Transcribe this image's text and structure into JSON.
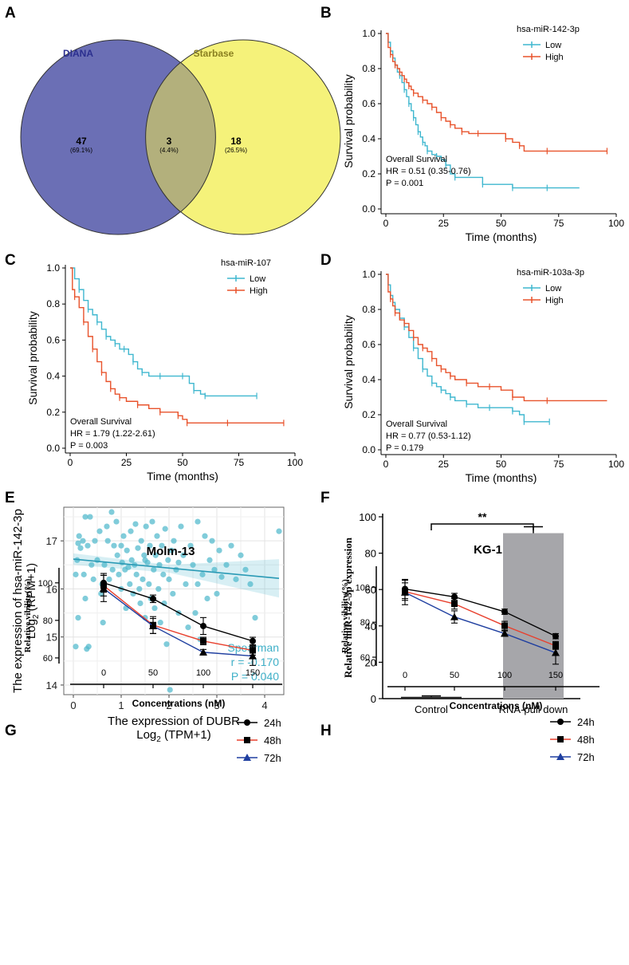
{
  "colors": {
    "diana": "#6b6fb5",
    "starbase": "#f5f27a",
    "overlap": "#b3b07c",
    "low": "#3fb7cf",
    "high": "#e8532c",
    "bar": "#a6a6aa",
    "scatter": "#4fb8cc",
    "line24": "#000000",
    "line48": "#e8402e",
    "line72": "#1f3fa0"
  },
  "panel_labels": {
    "a": "A",
    "b": "B",
    "c": "C",
    "d": "D",
    "e": "E",
    "f": "F",
    "g": "G",
    "h": "H"
  },
  "chart_data": [
    {
      "type": "venn",
      "sets": [
        {
          "name": "DIANA",
          "only": 47,
          "only_pct": "(69.1%)"
        },
        {
          "name": "Starbase",
          "only": 18,
          "only_pct": "(26.5%)"
        }
      ],
      "overlap": 3,
      "overlap_pct": "(4.4%)"
    },
    {
      "type": "line",
      "subtype": "kaplan-meier",
      "legend_title": "hsa-miR-142-3p",
      "xlabel": "Time (months)",
      "ylabel": "Survival probability",
      "xlim": [
        0,
        100
      ],
      "ylim": [
        0,
        1
      ],
      "xticks": [
        "0",
        "25",
        "50",
        "75",
        "100"
      ],
      "yticks": [
        "0.0",
        "0.2",
        "0.4",
        "0.6",
        "0.8",
        "1.0"
      ],
      "annotations": [
        "Overall Survival",
        "HR = 0.51 (0.35-0.76)",
        "P = 0.001"
      ],
      "series": [
        {
          "name": "Low",
          "color": "#3fb7cf",
          "x": [
            0,
            1,
            2,
            3,
            4,
            5,
            6,
            7,
            8,
            9,
            10,
            11,
            12,
            13,
            14,
            15,
            16,
            17,
            18,
            20,
            22,
            24,
            26,
            28,
            30,
            35,
            42,
            50,
            55,
            60,
            70,
            84
          ],
          "y": [
            1.0,
            0.95,
            0.9,
            0.86,
            0.82,
            0.78,
            0.76,
            0.72,
            0.68,
            0.64,
            0.6,
            0.56,
            0.52,
            0.48,
            0.44,
            0.41,
            0.38,
            0.36,
            0.33,
            0.31,
            0.3,
            0.28,
            0.25,
            0.2,
            0.18,
            0.18,
            0.14,
            0.14,
            0.12,
            0.12,
            0.12,
            0.12
          ]
        },
        {
          "name": "High",
          "color": "#e8532c",
          "x": [
            0,
            1,
            2,
            3,
            4,
            5,
            6,
            7,
            8,
            9,
            10,
            11,
            12,
            14,
            16,
            18,
            20,
            22,
            24,
            26,
            28,
            30,
            33,
            36,
            40,
            45,
            52,
            55,
            58,
            60,
            70,
            80,
            96
          ],
          "y": [
            1.0,
            0.92,
            0.88,
            0.84,
            0.82,
            0.8,
            0.78,
            0.76,
            0.74,
            0.72,
            0.7,
            0.68,
            0.66,
            0.64,
            0.62,
            0.6,
            0.58,
            0.55,
            0.52,
            0.5,
            0.48,
            0.46,
            0.44,
            0.43,
            0.43,
            0.43,
            0.4,
            0.38,
            0.36,
            0.33,
            0.33,
            0.33,
            0.33
          ]
        }
      ]
    },
    {
      "type": "line",
      "subtype": "kaplan-meier",
      "legend_title": "hsa-miR-107",
      "xlabel": "Time (months)",
      "ylabel": "Survival probability",
      "xlim": [
        0,
        100
      ],
      "ylim": [
        0,
        1
      ],
      "xticks": [
        "0",
        "25",
        "50",
        "75",
        "100"
      ],
      "yticks": [
        "0.0",
        "0.2",
        "0.4",
        "0.6",
        "0.8",
        "1.0"
      ],
      "annotations": [
        "Overall Survival",
        "HR = 1.79 (1.22-2.61)",
        "P = 0.003"
      ],
      "series": [
        {
          "name": "Low",
          "color": "#3fb7cf",
          "x": [
            0,
            2,
            4,
            6,
            8,
            10,
            12,
            14,
            16,
            18,
            20,
            22,
            24,
            26,
            28,
            30,
            32,
            35,
            40,
            45,
            50,
            53,
            55,
            58,
            60,
            70,
            83
          ],
          "y": [
            1.0,
            0.94,
            0.88,
            0.82,
            0.77,
            0.74,
            0.7,
            0.66,
            0.62,
            0.6,
            0.58,
            0.55,
            0.55,
            0.52,
            0.48,
            0.44,
            0.42,
            0.4,
            0.4,
            0.4,
            0.4,
            0.36,
            0.32,
            0.3,
            0.29,
            0.29,
            0.29
          ]
        },
        {
          "name": "High",
          "color": "#e8532c",
          "x": [
            0,
            1,
            2,
            4,
            6,
            8,
            10,
            12,
            14,
            16,
            18,
            20,
            22,
            25,
            30,
            35,
            40,
            45,
            48,
            50,
            52,
            60,
            70,
            80,
            95
          ],
          "y": [
            1.0,
            0.88,
            0.84,
            0.78,
            0.7,
            0.62,
            0.55,
            0.48,
            0.42,
            0.37,
            0.33,
            0.3,
            0.28,
            0.26,
            0.24,
            0.22,
            0.2,
            0.2,
            0.18,
            0.16,
            0.14,
            0.14,
            0.14,
            0.14,
            0.14
          ]
        }
      ]
    },
    {
      "type": "line",
      "subtype": "kaplan-meier",
      "legend_title": "hsa-miR-103a-3p",
      "xlabel": "Time (months)",
      "ylabel": "Survival probability",
      "xlim": [
        0,
        100
      ],
      "ylim": [
        0,
        1
      ],
      "xticks": [
        "0",
        "25",
        "50",
        "75",
        "100"
      ],
      "yticks": [
        "0.0",
        "0.2",
        "0.4",
        "0.6",
        "0.8",
        "1.0"
      ],
      "annotations": [
        "Overall Survival",
        "HR = 0.77 (0.53-1.12)",
        "P = 0.179"
      ],
      "series": [
        {
          "name": "Low",
          "color": "#3fb7cf",
          "x": [
            0,
            1,
            2,
            3,
            4,
            6,
            8,
            10,
            12,
            14,
            16,
            18,
            20,
            22,
            24,
            26,
            28,
            30,
            35,
            40,
            45,
            50,
            55,
            58,
            60,
            65,
            71
          ],
          "y": [
            1.0,
            0.94,
            0.88,
            0.84,
            0.8,
            0.75,
            0.7,
            0.64,
            0.58,
            0.52,
            0.46,
            0.42,
            0.38,
            0.36,
            0.34,
            0.32,
            0.3,
            0.28,
            0.26,
            0.24,
            0.24,
            0.24,
            0.22,
            0.2,
            0.16,
            0.16,
            0.16
          ]
        },
        {
          "name": "High",
          "color": "#e8532c",
          "x": [
            0,
            1,
            2,
            3,
            4,
            6,
            8,
            10,
            12,
            14,
            16,
            18,
            20,
            22,
            24,
            26,
            28,
            30,
            35,
            40,
            45,
            50,
            55,
            60,
            70,
            96
          ],
          "y": [
            1.0,
            0.9,
            0.86,
            0.82,
            0.78,
            0.74,
            0.72,
            0.68,
            0.64,
            0.6,
            0.58,
            0.56,
            0.52,
            0.48,
            0.46,
            0.44,
            0.42,
            0.4,
            0.38,
            0.36,
            0.36,
            0.34,
            0.3,
            0.28,
            0.28,
            0.28
          ]
        }
      ]
    },
    {
      "type": "scatter",
      "xlabel": "The expression of DUBR",
      "xlabel2": "Log",
      "xlabel2_sub": "2",
      "xlabel2_rest": " (TPM+1)",
      "ylabel": "The expression of hsa-miR-142-3p",
      "ylabel2": "Log",
      "ylabel2_sub": "2",
      "ylabel2_rest": " (RPM+1)",
      "xlim": [
        -0.2,
        4.4
      ],
      "ylim": [
        13.8,
        17.7
      ],
      "xticks": [
        "0",
        "1",
        "2",
        "3",
        "4"
      ],
      "yticks": [
        "14",
        "15",
        "16",
        "17"
      ],
      "annotations": [
        "Spearman",
        "r = -0.170",
        "P = 0.040"
      ],
      "fit": {
        "x": [
          0.0,
          4.3
        ],
        "y": [
          16.62,
          16.22
        ]
      },
      "points": [
        [
          0.05,
          14.8
        ],
        [
          0.1,
          15.4
        ],
        [
          0.25,
          15.8
        ],
        [
          0.28,
          14.75
        ],
        [
          0.32,
          14.8
        ],
        [
          0.05,
          16.3
        ],
        [
          0.08,
          16.6
        ],
        [
          0.1,
          16.95
        ],
        [
          0.12,
          17.1
        ],
        [
          0.15,
          16.85
        ],
        [
          0.2,
          17.0
        ],
        [
          0.22,
          16.3
        ],
        [
          0.25,
          17.5
        ],
        [
          0.3,
          16.9
        ],
        [
          0.35,
          17.5
        ],
        [
          0.38,
          16.5
        ],
        [
          0.42,
          16.2
        ],
        [
          0.45,
          17.0
        ],
        [
          0.5,
          16.6
        ],
        [
          0.55,
          17.2
        ],
        [
          0.58,
          15.9
        ],
        [
          0.62,
          15.3
        ],
        [
          0.65,
          16.5
        ],
        [
          0.7,
          17.3
        ],
        [
          0.72,
          17.0
        ],
        [
          0.75,
          16.2
        ],
        [
          0.8,
          17.6
        ],
        [
          0.82,
          16.4
        ],
        [
          0.85,
          16.9
        ],
        [
          0.9,
          17.4
        ],
        [
          0.92,
          16.7
        ],
        [
          0.95,
          16.3
        ],
        [
          1.0,
          16.0
        ],
        [
          1.02,
          16.55
        ],
        [
          1.05,
          17.1
        ],
        [
          1.08,
          16.4
        ],
        [
          1.1,
          15.6
        ],
        [
          1.12,
          16.8
        ],
        [
          1.15,
          16.45
        ],
        [
          1.18,
          16.1
        ],
        [
          1.2,
          17.2
        ],
        [
          1.22,
          16.6
        ],
        [
          1.25,
          15.9
        ],
        [
          1.28,
          16.5
        ],
        [
          1.3,
          17.35
        ],
        [
          1.32,
          16.3
        ],
        [
          1.35,
          16.85
        ],
        [
          1.38,
          16.0
        ],
        [
          1.4,
          15.7
        ],
        [
          1.42,
          17.0
        ],
        [
          1.45,
          16.2
        ],
        [
          1.48,
          16.7
        ],
        [
          1.5,
          15.4
        ],
        [
          1.52,
          17.3
        ],
        [
          1.55,
          16.55
        ],
        [
          1.58,
          16.1
        ],
        [
          1.6,
          16.9
        ],
        [
          1.62,
          15.8
        ],
        [
          1.65,
          17.4
        ],
        [
          1.68,
          16.4
        ],
        [
          1.7,
          15.6
        ],
        [
          1.72,
          16.7
        ],
        [
          1.75,
          17.1
        ],
        [
          1.78,
          16.0
        ],
        [
          1.8,
          16.5
        ],
        [
          1.82,
          15.3
        ],
        [
          1.85,
          16.9
        ],
        [
          1.88,
          16.3
        ],
        [
          1.9,
          15.7
        ],
        [
          1.92,
          17.25
        ],
        [
          1.95,
          14.85
        ],
        [
          1.98,
          16.6
        ],
        [
          2.0,
          16.2
        ],
        [
          2.02,
          13.9
        ],
        [
          2.05,
          16.8
        ],
        [
          2.08,
          15.9
        ],
        [
          2.1,
          17.0
        ],
        [
          2.15,
          16.4
        ],
        [
          2.2,
          15.5
        ],
        [
          2.25,
          17.3
        ],
        [
          2.3,
          16.7
        ],
        [
          2.35,
          16.1
        ],
        [
          2.4,
          15.2
        ],
        [
          2.45,
          16.9
        ],
        [
          2.5,
          16.5
        ],
        [
          2.55,
          15.5
        ],
        [
          2.6,
          17.4
        ],
        [
          2.65,
          14.95
        ],
        [
          2.7,
          16.3
        ],
        [
          2.75,
          17.1
        ],
        [
          2.8,
          15.8
        ],
        [
          2.85,
          16.6
        ],
        [
          2.9,
          17.0
        ],
        [
          2.95,
          16.4
        ],
        [
          3.0,
          15.9
        ],
        [
          3.05,
          16.8
        ],
        [
          3.1,
          16.25
        ],
        [
          3.2,
          16.5
        ],
        [
          3.3,
          16.9
        ],
        [
          3.4,
          16.2
        ],
        [
          3.5,
          16.7
        ],
        [
          3.6,
          16.4
        ],
        [
          3.7,
          16.1
        ],
        [
          3.8,
          15.4
        ],
        [
          4.3,
          17.2
        ],
        [
          0.6,
          16.1
        ],
        [
          1.0,
          16.9
        ],
        [
          1.5,
          16.6
        ],
        [
          2.2,
          16.55
        ],
        [
          2.6,
          16.1
        ]
      ]
    },
    {
      "type": "bar",
      "categories": [
        "Control",
        "RNA-pull down"
      ],
      "values": [
        1,
        91
      ],
      "errors": [
        0.5,
        3.5
      ],
      "ylabel": "Relative miR-142-3p expression",
      "ylim": [
        0,
        100
      ],
      "yticks": [
        "0",
        "20",
        "40",
        "60",
        "80",
        "100"
      ],
      "significance": "**"
    },
    {
      "type": "line",
      "title": "Molm-13",
      "categories": [
        "0",
        "50",
        "100",
        "150"
      ],
      "xlabel": "Concentrations  (nM)",
      "ylabel": "Relative vibility(%)",
      "ylim": [
        57,
        108
      ],
      "yticks": [
        "60",
        "80",
        "100"
      ],
      "series": [
        {
          "name": "24h",
          "marker": "circle",
          "values": [
            100,
            91.5,
            77,
            69
          ],
          "errors": [
            5,
            2,
            4.5,
            2
          ]
        },
        {
          "name": "48h",
          "marker": "square",
          "values": [
            98.5,
            77.5,
            69,
            64
          ],
          "errors": [
            5.5,
            4.5,
            2,
            2.5
          ]
        },
        {
          "name": "72h",
          "marker": "triangle",
          "values": [
            97,
            77,
            63,
            61
          ],
          "errors": [
            7,
            4,
            1.5,
            5
          ]
        }
      ]
    },
    {
      "type": "line",
      "title": "KG-1",
      "categories": [
        "0",
        "50",
        "100",
        "150"
      ],
      "xlabel": "Concentrations  (nM)",
      "ylabel": "Relative vibility(%)",
      "ylim": [
        55,
        112
      ],
      "yticks": [
        "60",
        "80",
        "100"
      ],
      "series": [
        {
          "name": "24h",
          "marker": "circle",
          "values": [
            99,
            94.5,
            86,
            72
          ],
          "errors": [
            5.5,
            2,
            1.5,
            1.5
          ]
        },
        {
          "name": "48h",
          "marker": "square",
          "values": [
            97.5,
            90.5,
            78,
            66.5
          ],
          "errors": [
            5,
            3,
            2.5,
            2
          ]
        },
        {
          "name": "72h",
          "marker": "triangle",
          "values": [
            97,
            83,
            73.5,
            62.5
          ],
          "errors": [
            7,
            3.5,
            1.5,
            6.5
          ]
        }
      ]
    }
  ]
}
